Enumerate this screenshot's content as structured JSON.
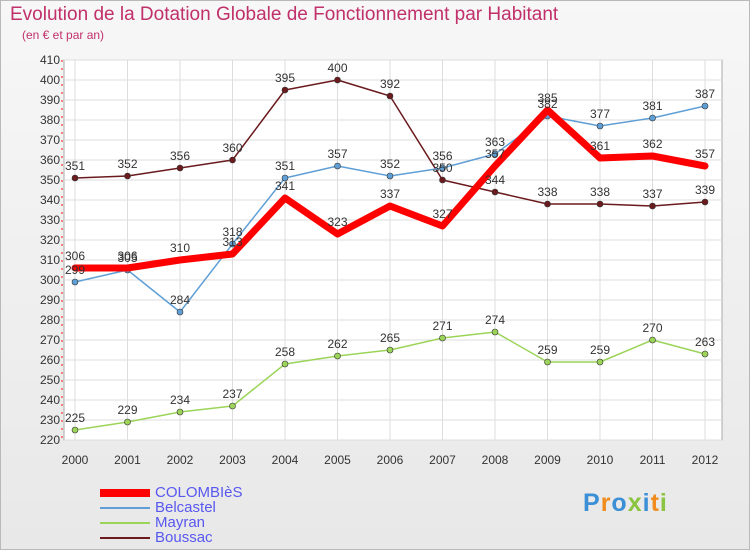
{
  "title": "Evolution de la Dotation Globale de Fonctionnement par Habitant",
  "subtitle": "(en € et par an)",
  "logo": {
    "letters": [
      "P",
      "r",
      "o",
      "x",
      "i",
      "t",
      "i"
    ],
    "colors": [
      "#3b8fd6",
      "#f08c1e",
      "#3b8fd6",
      "#8bc43f",
      "#3b8fd6",
      "#f08c1e",
      "#8bc43f"
    ]
  },
  "chart_data": {
    "type": "line",
    "x": [
      "2000",
      "2001",
      "2002",
      "2003",
      "2004",
      "2005",
      "2006",
      "2007",
      "2008",
      "2009",
      "2010",
      "2011",
      "2012"
    ],
    "ylim": [
      220,
      410
    ],
    "yticks": [
      220,
      230,
      240,
      250,
      260,
      270,
      280,
      290,
      300,
      310,
      320,
      330,
      340,
      350,
      360,
      370,
      380,
      390,
      400,
      410
    ],
    "grid": true,
    "legend_position": "bottom-left",
    "series": [
      {
        "name": "Boussac",
        "color": "#6b1a1d",
        "width": 1.5,
        "values": [
          351,
          352,
          356,
          360,
          395,
          400,
          392,
          350,
          344,
          338,
          338,
          337,
          339
        ]
      },
      {
        "name": "Belcastel",
        "color": "#5f9fd6",
        "width": 1.5,
        "values": [
          299,
          305,
          284,
          318,
          351,
          357,
          352,
          356,
          363,
          382,
          377,
          381,
          387
        ]
      },
      {
        "name": "Mayran",
        "color": "#9bd458",
        "width": 1.5,
        "values": [
          225,
          229,
          234,
          237,
          258,
          262,
          265,
          271,
          274,
          259,
          259,
          270,
          263
        ]
      },
      {
        "name": "COLOMBIèS",
        "color": "#ff0000",
        "width": 7,
        "values": [
          306,
          306,
          310,
          313,
          341,
          323,
          337,
          327,
          357,
          385,
          361,
          362,
          357
        ]
      }
    ],
    "data_labels": [
      {
        "series": "Boussac",
        "labels": [
          "351",
          "352",
          "356",
          "360",
          "395",
          "400",
          "392",
          "350",
          "344",
          "338",
          "338",
          "337",
          "339"
        ]
      },
      {
        "series": "Belcastel",
        "labels": [
          "299",
          "305",
          "284",
          "318",
          "351",
          "357",
          "352",
          "356",
          "363",
          "382",
          "377",
          "381",
          "387"
        ]
      },
      {
        "series": "Mayran",
        "labels": [
          "225",
          "229",
          "234",
          "237",
          "258",
          "262",
          "265",
          "271",
          "274",
          "259",
          "259",
          "270",
          "263"
        ]
      },
      {
        "series": "COLOMBIèS",
        "labels": [
          "306",
          "306",
          "310",
          "313",
          "341",
          "323",
          "337",
          "327",
          "357",
          "385",
          "361",
          "362",
          "357"
        ]
      }
    ]
  },
  "legend": [
    {
      "name": "COLOMBIèS",
      "color": "#ff0000",
      "label_color": "#5858f0"
    },
    {
      "name": "Belcastel",
      "color": "#5f9fd6",
      "label_color": "#5858f0"
    },
    {
      "name": "Mayran",
      "color": "#9bd458",
      "label_color": "#5858f0"
    },
    {
      "name": "Boussac",
      "color": "#6b1a1d",
      "label_color": "#5858f0"
    }
  ]
}
